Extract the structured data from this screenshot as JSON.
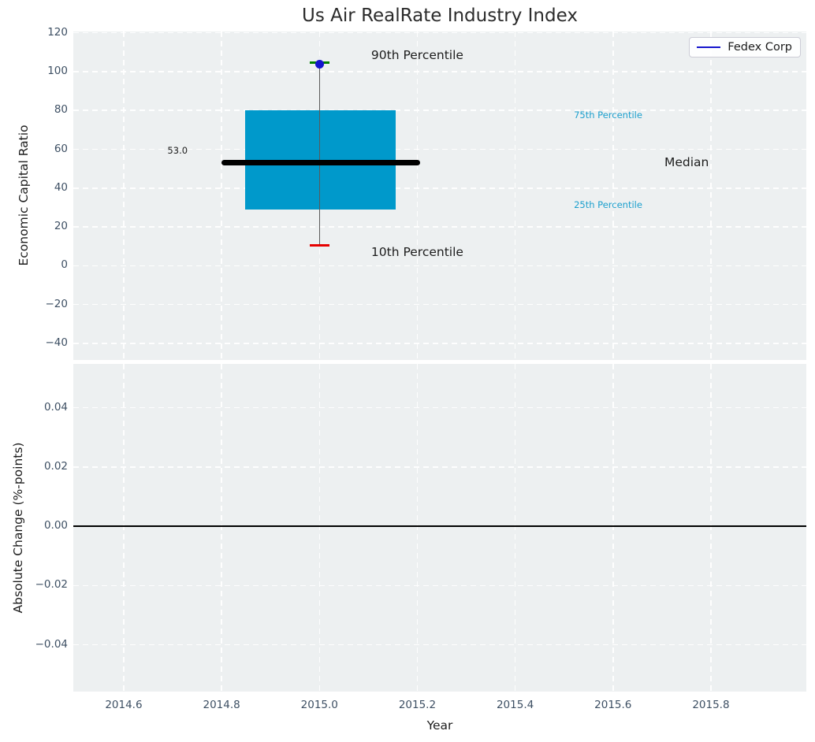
{
  "title": "Us Air RealRate Industry Index",
  "styles": {
    "figure_background": "#ffffff",
    "axes_background": "#edf0f1",
    "grid_color": "#ffffff",
    "tick_color": "#3d4f63",
    "text_color": "#1c1c1c"
  },
  "chart_data": [
    {
      "type": "box",
      "title": "Us Air RealRate Industry Index",
      "xlabel": "",
      "ylabel": "Economic Capital Ratio",
      "xlim": [
        2014.497,
        2015.995
      ],
      "ylim": [
        -48.6,
        120.7
      ],
      "grid": "white dashed, both axes",
      "x_ticks": {
        "values": [
          2014.6,
          2014.8,
          2015.0,
          2015.2,
          2015.4,
          2015.6,
          2015.8
        ]
      },
      "y_ticks": {
        "values": [
          120,
          100,
          80,
          60,
          40,
          20,
          0,
          -20,
          -40
        ],
        "labels": [
          "120",
          "100",
          "80",
          "60",
          "40",
          "20",
          "0",
          "−20",
          "−40"
        ]
      },
      "boxplot": {
        "x_center": 2015.0,
        "box_left": 2014.848,
        "box_right": 2015.155,
        "q1": 29,
        "median": 53.0,
        "q3": 80,
        "whisker_low": 10.5,
        "whisker_high": 104.5,
        "whisker_low_label": "10th Percentile",
        "whisker_high_label": "90th Percentile",
        "median_line_left": 2014.8,
        "median_line_right": 2015.205,
        "cap_half_width": 0.02,
        "box_color": "#0099cb",
        "median_color": "#000000",
        "whisker_color": "#5a5a5a",
        "cap_high_color": "#008000",
        "cap_low_color": "#e60000"
      },
      "series": [
        {
          "name": "Fedex Corp",
          "x": [
            2015.0
          ],
          "y": [
            104.0
          ],
          "marker": "circle",
          "color": "#1414cd"
        }
      ],
      "annotations": [
        {
          "text": "90th Percentile",
          "x": 2015.2,
          "y": 108.5,
          "ha": "center",
          "size": 15.5,
          "color": "#1c1c1c"
        },
        {
          "text": "10th Percentile",
          "x": 2015.2,
          "y": 7.0,
          "ha": "center",
          "size": 15.5,
          "color": "#1c1c1c"
        },
        {
          "text": "75th Percentile",
          "x": 2015.52,
          "y": 77.5,
          "ha": "left",
          "size": 11.5,
          "color": "#1b9fcd"
        },
        {
          "text": "25th Percentile",
          "x": 2015.52,
          "y": 31.5,
          "ha": "left",
          "size": 11.5,
          "color": "#1b9fcd"
        },
        {
          "text": "Median",
          "x": 2015.705,
          "y": 53.5,
          "ha": "left",
          "size": 15.5,
          "color": "#1c1c1c"
        },
        {
          "text": "53.0",
          "x": 2014.71,
          "y": 59.5,
          "ha": "center",
          "size": 11.5,
          "color": "#1c1c1c"
        }
      ],
      "legend": {
        "label": "Fedex Corp",
        "line_color": "#1414cd",
        "position": "upper right"
      }
    },
    {
      "type": "line",
      "xlabel": "Year",
      "ylabel": "Absolute Change (%-points)",
      "xlim": [
        2014.497,
        2015.995
      ],
      "ylim": [
        -0.0558,
        0.0548
      ],
      "grid": "white dashed, both axes",
      "x_ticks": {
        "values": [
          2014.6,
          2014.8,
          2015.0,
          2015.2,
          2015.4,
          2015.6,
          2015.8
        ],
        "labels": [
          "2014.6",
          "2014.8",
          "2015.0",
          "2015.2",
          "2015.4",
          "2015.6",
          "2015.8"
        ]
      },
      "y_ticks": {
        "values": [
          0.04,
          0.02,
          0.0,
          -0.02,
          -0.04
        ],
        "labels": [
          "0.04",
          "0.02",
          "0.00",
          "−0.02",
          "−0.04"
        ]
      },
      "zero_line": {
        "y": 0.0,
        "color": "#000000"
      },
      "series": []
    }
  ]
}
